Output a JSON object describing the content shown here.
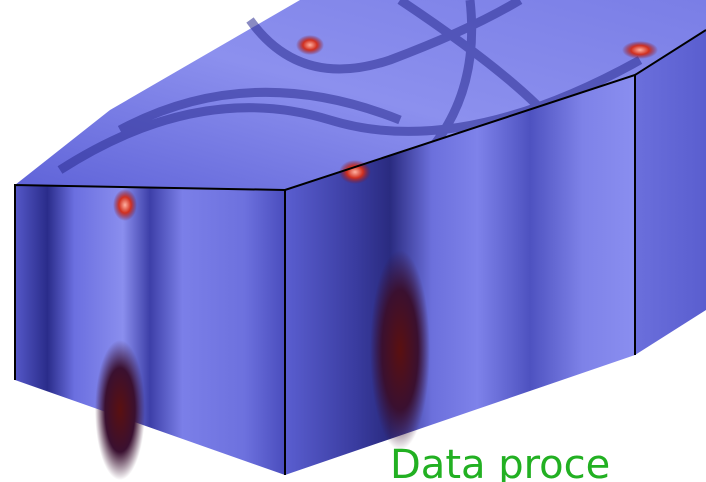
{
  "caption": "Data proce"
}
